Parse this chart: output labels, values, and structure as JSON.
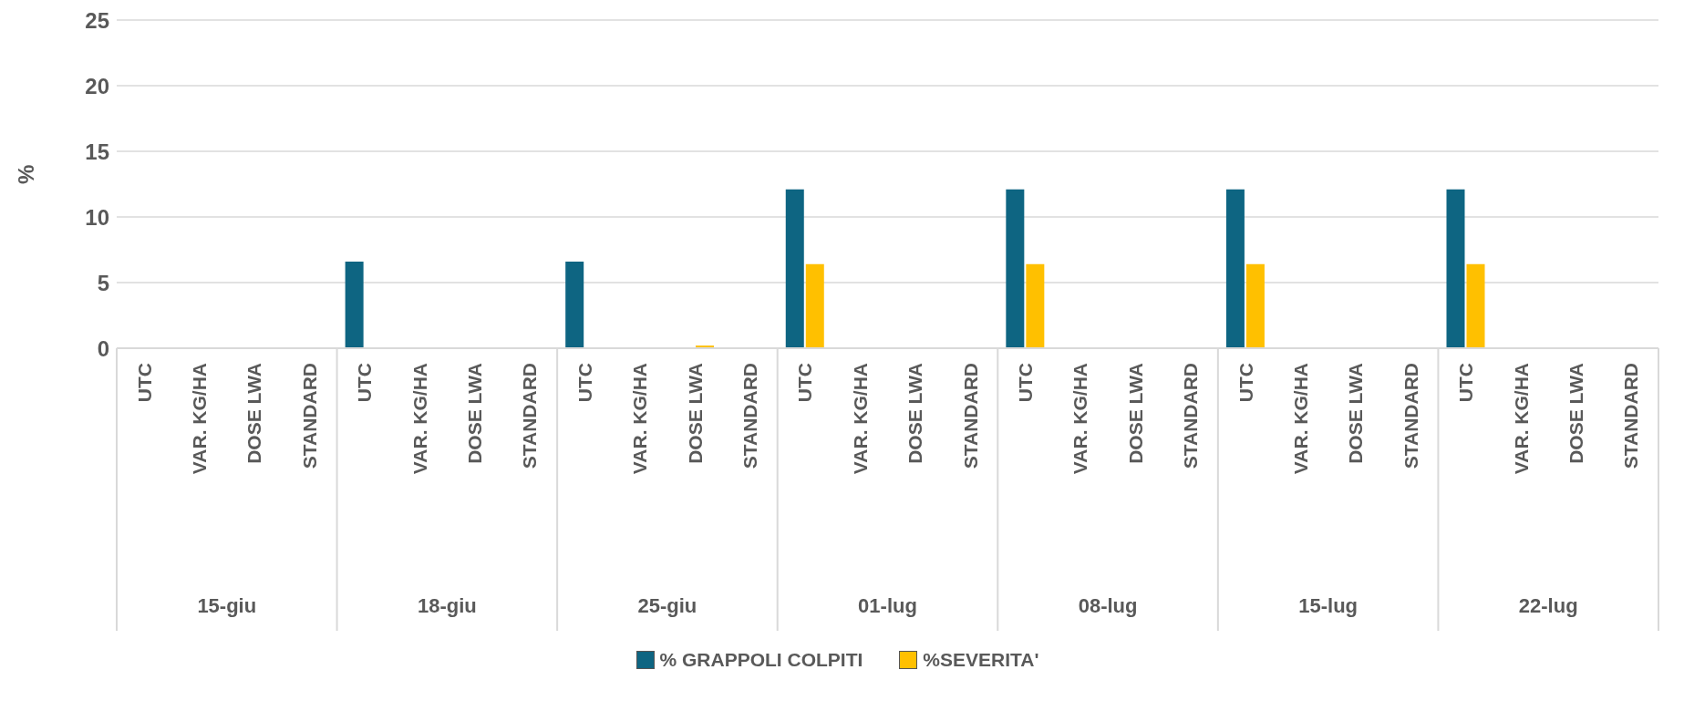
{
  "chart_data": {
    "type": "bar",
    "ylabel": "%",
    "categories": [
      "UTC",
      "VAR. KG/HA",
      "DOSE LWA",
      "STANDARD",
      "UTC",
      "VAR. KG/HA",
      "DOSE LWA",
      "STANDARD",
      "UTC",
      "VAR. KG/HA",
      "DOSE LWA",
      "STANDARD",
      "UTC",
      "VAR. KG/HA",
      "DOSE LWA",
      "STANDARD",
      "UTC",
      "VAR. KG/HA",
      "DOSE LWA",
      "STANDARD",
      "UTC",
      "VAR. KG/HA",
      "DOSE LWA",
      "STANDARD",
      "UTC",
      "VAR. KG/HA",
      "DOSE LWA",
      "STANDARD"
    ],
    "annotations": [
      "15-giu",
      "18-giu",
      "25-giu",
      "01-lug",
      "08-lug",
      "15-lug",
      "22-lug"
    ],
    "series": [
      {
        "name": "% GRAPPOLI COLPITI",
        "color": "#0e6582",
        "values": [
          0,
          0,
          0,
          0,
          6.6,
          0,
          0,
          0,
          6.6,
          0,
          0,
          0,
          12.1,
          0,
          0,
          0,
          12.1,
          0,
          0,
          0,
          12.1,
          0,
          0,
          0,
          12.1,
          0,
          0,
          0
        ]
      },
      {
        "name": "%SEVERITA'",
        "color": "#ffc000",
        "values": [
          0,
          0,
          0,
          0,
          null,
          0,
          0,
          0,
          null,
          0,
          0.2,
          0,
          6.4,
          0,
          0,
          0,
          6.4,
          0,
          0,
          0,
          6.4,
          0,
          0,
          0,
          6.4,
          0,
          0,
          0
        ]
      }
    ],
    "ylim": [
      0,
      25
    ],
    "yticks": [
      0,
      5,
      10,
      15,
      20,
      25
    ],
    "grid": "y",
    "legend": "bottom"
  }
}
